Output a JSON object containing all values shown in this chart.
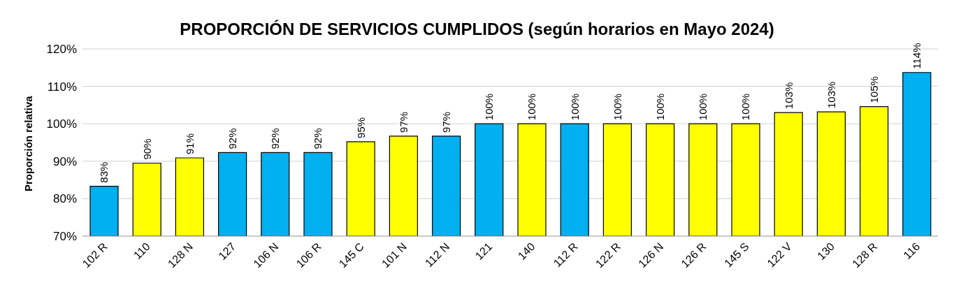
{
  "chart_data": {
    "type": "bar",
    "title": "PROPORCIÓN DE SERVICIOS CUMPLIDOS (según horarios en Mayo 2024)",
    "ylabel": "Proporción relativa",
    "categories": [
      "102 R",
      "110",
      "128 N",
      "127",
      "106 N",
      "106 R",
      "145 C",
      "101 N",
      "112 N",
      "121",
      "140",
      "112 R",
      "122 R",
      "126 N",
      "126 R",
      "145 S",
      "122 V",
      "130",
      "128 R",
      "116"
    ],
    "values": [
      83.3,
      89.5,
      90.9,
      92.3,
      92.3,
      92.3,
      95.2,
      96.7,
      96.7,
      100,
      100,
      100,
      100,
      100,
      100,
      100,
      103,
      103.2,
      104.6,
      113.7
    ],
    "value_labels": [
      "83%",
      "90%",
      "91%",
      "92%",
      "92%",
      "92%",
      "95%",
      "97%",
      "97%",
      "100%",
      "100%",
      "100%",
      "100%",
      "100%",
      "100%",
      "100%",
      "103%",
      "103%",
      "105%",
      "114%"
    ],
    "colors": [
      "#00b0f0",
      "#ffff00",
      "#ffff00",
      "#00b0f0",
      "#00b0f0",
      "#00b0f0",
      "#ffff00",
      "#ffff00",
      "#00b0f0",
      "#00b0f0",
      "#ffff00",
      "#00b0f0",
      "#ffff00",
      "#ffff00",
      "#ffff00",
      "#ffff00",
      "#ffff00",
      "#ffff00",
      "#ffff00",
      "#00b0f0"
    ],
    "ylim": [
      70,
      120
    ],
    "yticks": [
      {
        "value": 70,
        "label": "70%"
      },
      {
        "value": 80,
        "label": "80%"
      },
      {
        "value": 90,
        "label": "90%"
      },
      {
        "value": 100,
        "label": "100%"
      },
      {
        "value": 110,
        "label": "110%"
      },
      {
        "value": 120,
        "label": "120%"
      }
    ],
    "grid": "y",
    "legend": false
  }
}
